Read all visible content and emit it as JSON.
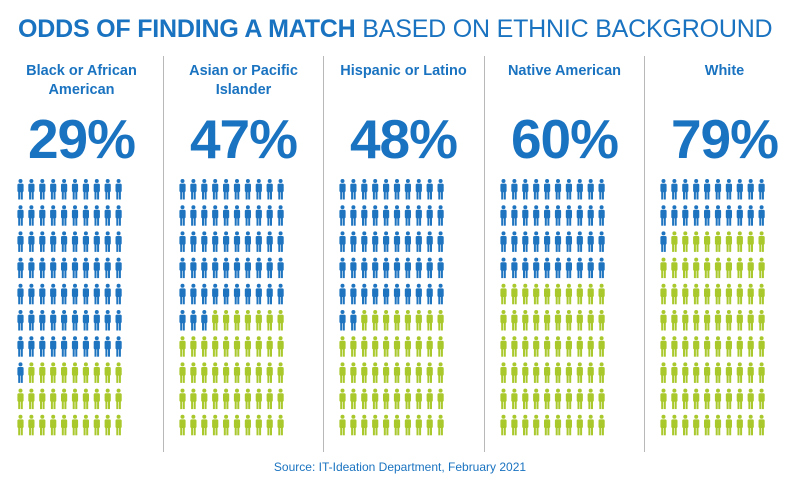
{
  "header": {
    "title_bold": "ODDS OF FINDING A MATCH",
    "title_light": "BASED ON ETHNIC BACKGROUND"
  },
  "colors": {
    "match": "#a9c82b",
    "no_match": "#1f74c0",
    "text": "#1a73c0"
  },
  "icon": "person-icon",
  "chart_data": {
    "type": "pictogram",
    "title": "ODDS OF FINDING A MATCH BASED ON ETHNIC BACKGROUND",
    "unit": "%",
    "icons_per_group": 100,
    "categories": [
      "Black or African American",
      "Asian or Pacific Islander",
      "Hispanic or Latino",
      "Native American",
      "White"
    ],
    "labels": [
      "29%",
      "47%",
      "48%",
      "60%",
      "79%"
    ],
    "values": [
      29,
      47,
      48,
      60,
      79
    ],
    "legend": "none",
    "grid": false
  },
  "source": "Source: IT-Ideation Department, February 2021"
}
